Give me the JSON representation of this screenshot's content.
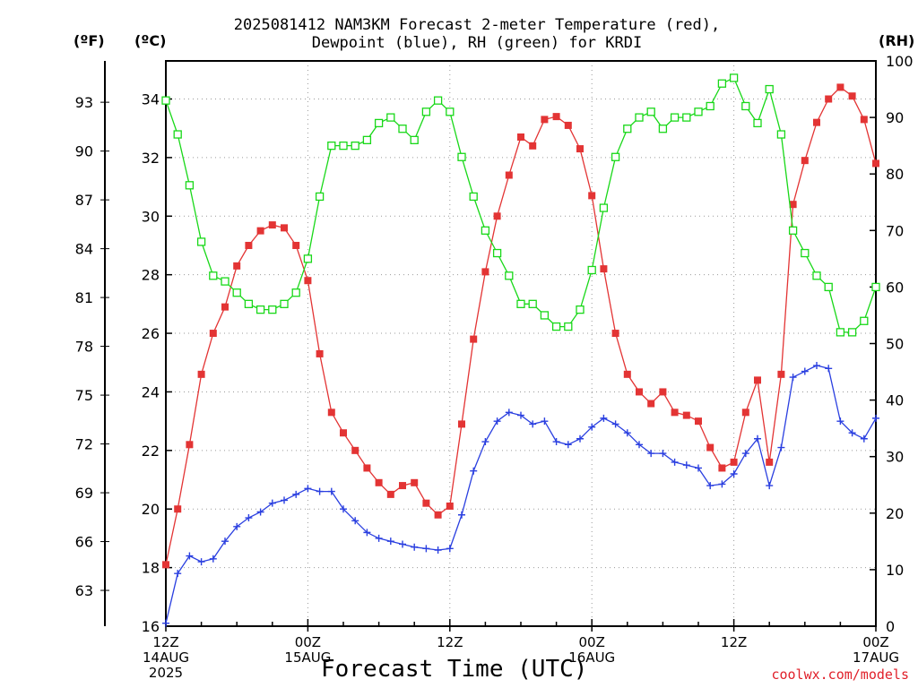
{
  "title": {
    "line1": "2025081412 NAM3KM Forecast 2-meter Temperature (red),",
    "line2": "Dewpoint (blue), RH (green) for KRDI"
  },
  "units": {
    "fahrenheit": "(ºF)",
    "celsius": "(ºC)",
    "rh": "(RH)"
  },
  "credit": "coolwx.com/models",
  "colors": {
    "temperature": "#e33434",
    "dewpoint": "#2a3fe0",
    "rh": "#18d818",
    "grid": "#9a9a9a"
  },
  "chart_data": {
    "type": "line",
    "xlabel": "Forecast Time (UTC)",
    "x_unit": "forecast hour",
    "xlim": [
      0,
      60
    ],
    "x_ticks": [
      {
        "x": 0,
        "line1": "12Z",
        "line2": "14AUG",
        "line3": "2025"
      },
      {
        "x": 12,
        "line1": "00Z",
        "line2": "15AUG",
        "line3": ""
      },
      {
        "x": 24,
        "line1": "12Z",
        "line2": "",
        "line3": ""
      },
      {
        "x": 36,
        "line1": "00Z",
        "line2": "16AUG",
        "line3": ""
      },
      {
        "x": 48,
        "line1": "12Z",
        "line2": "",
        "line3": ""
      },
      {
        "x": 60,
        "line1": "00Z",
        "line2": "17AUG",
        "line3": ""
      }
    ],
    "y_left_celsius": {
      "ylim": [
        16,
        35.3
      ],
      "ticks": [
        16,
        18,
        20,
        22,
        24,
        26,
        28,
        30,
        32,
        34
      ]
    },
    "y_left_fahrenheit": {
      "ticks": [
        63,
        66,
        69,
        72,
        75,
        78,
        81,
        84,
        87,
        90,
        93
      ]
    },
    "y_right_rh": {
      "ylim": [
        0,
        100
      ],
      "ticks": [
        0,
        10,
        20,
        30,
        40,
        50,
        60,
        70,
        80,
        90,
        100
      ]
    },
    "grid": true,
    "series": [
      {
        "key": "temperature",
        "axis": "celsius",
        "marker": "filled-square",
        "values": [
          18.1,
          20.0,
          22.2,
          24.6,
          26.0,
          26.9,
          28.3,
          29.0,
          29.5,
          29.7,
          29.6,
          29.0,
          27.8,
          25.3,
          23.3,
          22.6,
          22.0,
          21.4,
          20.9,
          20.5,
          20.8,
          20.9,
          20.2,
          19.8,
          20.1,
          22.9,
          25.8,
          28.1,
          30.0,
          31.4,
          32.7,
          32.4,
          33.3,
          33.4,
          33.1,
          32.3,
          30.7,
          28.2,
          26.0,
          24.6,
          24.0,
          23.6,
          24.0,
          23.3,
          23.2,
          23.0,
          22.1,
          21.4,
          21.6,
          23.3,
          24.4,
          21.6,
          24.6,
          30.4,
          31.9,
          33.2,
          34.0,
          34.4,
          34.1,
          33.3,
          31.8
        ]
      },
      {
        "key": "dewpoint",
        "axis": "celsius",
        "marker": "plus",
        "values": [
          16.1,
          17.8,
          18.4,
          18.2,
          18.3,
          18.9,
          19.4,
          19.7,
          19.9,
          20.2,
          20.3,
          20.5,
          20.7,
          20.6,
          20.6,
          20.0,
          19.6,
          19.2,
          19.0,
          18.9,
          18.8,
          18.7,
          18.65,
          18.6,
          18.65,
          19.8,
          21.3,
          22.3,
          23.0,
          23.3,
          23.2,
          22.9,
          23.0,
          22.3,
          22.2,
          22.4,
          22.8,
          23.1,
          22.9,
          22.6,
          22.2,
          21.9,
          21.9,
          21.6,
          21.5,
          21.4,
          20.8,
          20.85,
          21.2,
          21.9,
          22.4,
          20.8,
          22.1,
          24.5,
          24.7,
          24.9,
          24.8,
          23.0,
          22.6,
          22.4,
          23.1
        ]
      },
      {
        "key": "rh",
        "axis": "rh",
        "marker": "open-square",
        "values": [
          93,
          87,
          78,
          68,
          62,
          61,
          59,
          57,
          56,
          56,
          57,
          59,
          65,
          76,
          85,
          85,
          85,
          86,
          89,
          90,
          88,
          86,
          91,
          93,
          91,
          83,
          76,
          70,
          66,
          62,
          57,
          57,
          55,
          53,
          53,
          56,
          63,
          74,
          83,
          88,
          90,
          91,
          88,
          90,
          90,
          91,
          92,
          96,
          97,
          92,
          89,
          95,
          87,
          70,
          66,
          62,
          60,
          52,
          52,
          54,
          60
        ]
      }
    ]
  }
}
